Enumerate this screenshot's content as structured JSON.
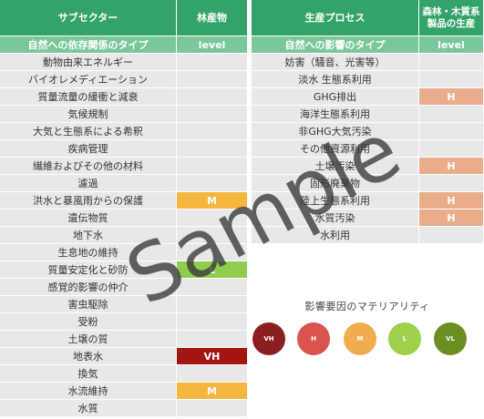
{
  "left_table": {
    "headers": [
      "サブセクター",
      "林産物"
    ],
    "subheaders": [
      "自然への依存関係のタイプ",
      "level"
    ],
    "rows": [
      {
        "label": "動物由来エネルギー",
        "level": ""
      },
      {
        "label": "バイオレメディエーション",
        "level": ""
      },
      {
        "label": "質量流量の緩衝と減衰",
        "level": ""
      },
      {
        "label": "気候規制",
        "level": ""
      },
      {
        "label": "大気と生態系による希釈",
        "level": ""
      },
      {
        "label": "疾病管理",
        "level": ""
      },
      {
        "label": "繊維およびその他の材料",
        "level": ""
      },
      {
        "label": "濾過",
        "level": ""
      },
      {
        "label": "洪水と暴風雨からの保護",
        "level": "M"
      },
      {
        "label": "遺伝物質",
        "level": ""
      },
      {
        "label": "地下水",
        "level": ""
      },
      {
        "label": "生息地の維持",
        "level": ""
      },
      {
        "label": "質量安定化と砂防",
        "level": "L"
      },
      {
        "label": "感覚的影響の仲介",
        "level": ""
      },
      {
        "label": "害虫駆除",
        "level": ""
      },
      {
        "label": "受粉",
        "level": ""
      },
      {
        "label": "土壌の質",
        "level": ""
      },
      {
        "label": "地表水",
        "level": "VH"
      },
      {
        "label": "換気",
        "level": ""
      },
      {
        "label": "水流維持",
        "level": "M"
      },
      {
        "label": "水質",
        "level": ""
      }
    ]
  },
  "right_table": {
    "headers": [
      "生産プロセス",
      "森林・木質系製品の生産"
    ],
    "subheaders": [
      "自然への影響のタイプ",
      "level"
    ],
    "rows": [
      {
        "label": "妨害（騒音、光害等）",
        "level": ""
      },
      {
        "label": "淡水 生態系利用",
        "level": ""
      },
      {
        "label": "GHG排出",
        "level": "H"
      },
      {
        "label": "海洋生態系利用",
        "level": ""
      },
      {
        "label": "非GHG大気汚染",
        "level": ""
      },
      {
        "label": "その他資源利用",
        "level": ""
      },
      {
        "label": "土壌汚染",
        "level": "H"
      },
      {
        "label": "固形廃棄物",
        "level": ""
      },
      {
        "label": "陸上生態系利用",
        "level": "H"
      },
      {
        "label": "水質汚染",
        "level": "H"
      },
      {
        "label": "水利用",
        "level": ""
      }
    ]
  },
  "legend": {
    "title": "影響要因のマテリアリティ",
    "levels": [
      {
        "code": "VH",
        "color": "#8b1e1e"
      },
      {
        "code": "H",
        "color": "#d9534f"
      },
      {
        "code": "M",
        "color": "#f0ad4e"
      },
      {
        "code": "L",
        "color": "#9fd04a"
      },
      {
        "code": "VL",
        "color": "#6b8e23"
      }
    ]
  },
  "level_colors": {
    "VH": "#a31512",
    "H": "#e9ad8c",
    "M": "#f3b63f",
    "L": "#8fcc50",
    "VL": "#6a8c2c"
  },
  "watermark": "Sample"
}
